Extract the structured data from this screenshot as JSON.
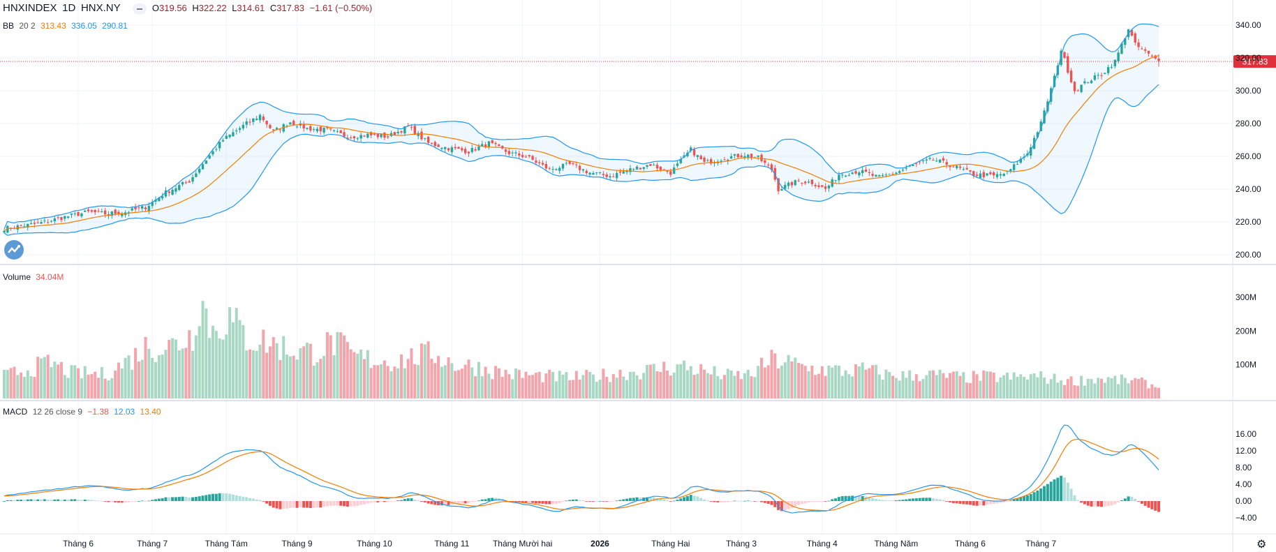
{
  "header": {
    "symbol": "HNXINDEX",
    "interval": "1D",
    "exchange": "HNX.NY",
    "ohlc": {
      "o_label": "O",
      "o": "319.56",
      "h_label": "H",
      "h": "322.22",
      "l_label": "L",
      "l": "314.61",
      "c_label": "C",
      "c": "317.83",
      "change": "−1.61 (−0.50%)"
    }
  },
  "bb": {
    "label": "BB",
    "params": "20 2",
    "basis": "313.43",
    "upper": "336.05",
    "lower": "290.81"
  },
  "volume": {
    "label": "Volume",
    "value": "34.04M"
  },
  "macd": {
    "label": "MACD",
    "params": "12 26 close 9",
    "hist": "−1.38",
    "macd": "12.03",
    "signal": "13.40"
  },
  "colors": {
    "up": "#26a69a",
    "down": "#ef5350",
    "vol_up": "#a8d8c4",
    "vol_down": "#f4a5ab",
    "bb_band": "#2196f3",
    "bb_basis": "#f57c00",
    "macd_line": "#2196f3",
    "signal_line": "#f57c00",
    "price_tag": "#e0303c"
  },
  "icons": {
    "logo": "tradingview-logo-icon",
    "settings": "gear-icon",
    "collapse": "minus-icon"
  },
  "chart_data": [
    {
      "type": "candlestick",
      "title": "HNXINDEX · 1D · HNX.NY",
      "last_price": 317.83,
      "ylim": [
        195,
        345
      ],
      "y_ticks": [
        "340.00",
        "320.00",
        "300.00",
        "280.00",
        "260.00",
        "240.00",
        "220.00",
        "200.00"
      ],
      "x_ticks": [
        "Tháng 6",
        "Tháng 7",
        "Tháng Tám",
        "Tháng 9",
        "Tháng 10",
        "Tháng 11",
        "Tháng Mười hai",
        "2026",
        "Tháng Hai",
        "Tháng 3",
        "Tháng 4",
        "Tháng Năm",
        "Tháng 6",
        "Tháng 7"
      ],
      "close_anchors": [
        [
          0,
          216
        ],
        [
          10,
          219
        ],
        [
          18,
          223
        ],
        [
          25,
          226
        ],
        [
          30,
          225
        ],
        [
          36,
          226
        ],
        [
          42,
          229
        ],
        [
          48,
          238
        ],
        [
          55,
          245
        ],
        [
          60,
          258
        ],
        [
          65,
          270
        ],
        [
          72,
          280
        ],
        [
          76,
          285
        ],
        [
          80,
          275
        ],
        [
          85,
          281
        ],
        [
          90,
          277
        ],
        [
          96,
          276
        ],
        [
          102,
          272
        ],
        [
          108,
          273
        ],
        [
          114,
          272
        ],
        [
          120,
          278
        ],
        [
          126,
          268
        ],
        [
          132,
          265
        ],
        [
          138,
          263
        ],
        [
          144,
          268
        ],
        [
          150,
          262
        ],
        [
          155,
          260
        ],
        [
          162,
          252
        ],
        [
          168,
          255
        ],
        [
          174,
          250
        ],
        [
          180,
          248
        ],
        [
          186,
          252
        ],
        [
          192,
          255
        ],
        [
          198,
          250
        ],
        [
          204,
          264
        ],
        [
          208,
          256
        ],
        [
          214,
          259
        ],
        [
          220,
          261
        ],
        [
          224,
          259
        ],
        [
          228,
          252
        ],
        [
          230,
          240
        ],
        [
          236,
          245
        ],
        [
          240,
          244
        ],
        [
          244,
          240
        ],
        [
          248,
          249
        ],
        [
          254,
          251
        ],
        [
          260,
          247
        ],
        [
          266,
          251
        ],
        [
          272,
          256
        ],
        [
          276,
          258
        ],
        [
          282,
          254
        ],
        [
          288,
          249
        ],
        [
          294,
          248
        ],
        [
          298,
          250
        ],
        [
          304,
          262
        ],
        [
          308,
          280
        ],
        [
          312,
          308
        ],
        [
          314,
          325
        ],
        [
          318,
          300
        ],
        [
          322,
          306
        ],
        [
          326,
          310
        ],
        [
          330,
          318
        ],
        [
          334,
          338
        ],
        [
          336,
          328
        ],
        [
          340,
          322
        ],
        [
          343,
          318
        ]
      ],
      "vol_anchors": [
        [
          0,
          70
        ],
        [
          8,
          95
        ],
        [
          14,
          110
        ],
        [
          20,
          80
        ],
        [
          30,
          75
        ],
        [
          38,
          125
        ],
        [
          42,
          160
        ],
        [
          50,
          165
        ],
        [
          56,
          200
        ],
        [
          58,
          320
        ],
        [
          62,
          210
        ],
        [
          66,
          255
        ],
        [
          72,
          190
        ],
        [
          80,
          170
        ],
        [
          86,
          150
        ],
        [
          92,
          145
        ],
        [
          98,
          175
        ],
        [
          104,
          130
        ],
        [
          110,
          120
        ],
        [
          116,
          115
        ],
        [
          122,
          130
        ],
        [
          128,
          140
        ],
        [
          134,
          105
        ],
        [
          140,
          100
        ],
        [
          146,
          85
        ],
        [
          152,
          75
        ],
        [
          160,
          70
        ],
        [
          168,
          65
        ],
        [
          176,
          70
        ],
        [
          184,
          80
        ],
        [
          190,
          85
        ],
        [
          196,
          95
        ],
        [
          202,
          100
        ],
        [
          210,
          80
        ],
        [
          216,
          70
        ],
        [
          222,
          75
        ],
        [
          228,
          120
        ],
        [
          232,
          115
        ],
        [
          238,
          95
        ],
        [
          244,
          90
        ],
        [
          250,
          85
        ],
        [
          256,
          90
        ],
        [
          262,
          75
        ],
        [
          268,
          70
        ],
        [
          274,
          75
        ],
        [
          280,
          70
        ],
        [
          286,
          65
        ],
        [
          292,
          68
        ],
        [
          300,
          65
        ],
        [
          306,
          70
        ],
        [
          312,
          60
        ],
        [
          318,
          55
        ],
        [
          324,
          62
        ],
        [
          330,
          58
        ],
        [
          336,
          55
        ],
        [
          340,
          45
        ],
        [
          343,
          34
        ]
      ]
    },
    {
      "type": "bar",
      "title": "Volume",
      "y_ticks": [
        "300M",
        "200M",
        "100M"
      ]
    },
    {
      "type": "line",
      "title": "MACD",
      "y_ticks": [
        "16.00",
        "12.00",
        "8.00",
        "4.00",
        "0.00",
        "−4.00"
      ],
      "series": [
        {
          "name": "MACD"
        },
        {
          "name": "Signal"
        },
        {
          "name": "Histogram"
        }
      ]
    }
  ]
}
